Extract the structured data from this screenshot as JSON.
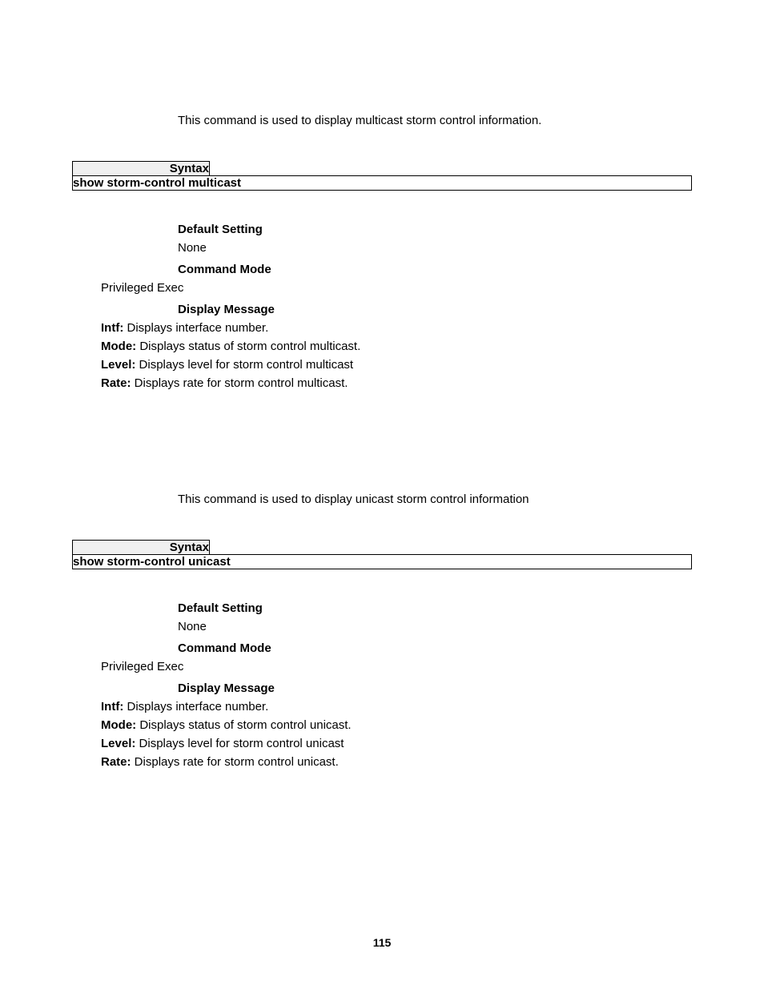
{
  "page_number": "115",
  "sections": [
    {
      "intro": "This command is used to display multicast storm control information.",
      "syntax_label": "Syntax",
      "syntax_command": "show storm-control multicast",
      "default_setting_label": "Default Setting",
      "default_setting_value": "None",
      "command_mode_label": "Command Mode",
      "command_mode_value": "Privileged Exec",
      "display_message_label": "Display Message",
      "messages": [
        {
          "key": "Intf:",
          "text": " Displays interface number."
        },
        {
          "key": "Mode:",
          "text": " Displays status of storm control multicast."
        },
        {
          "key": "Level:",
          "text": " Displays level for storm control multicast"
        },
        {
          "key": "Rate:",
          "text": " Displays rate for storm control multicast."
        }
      ]
    },
    {
      "intro": "This command is used to display unicast storm control information",
      "syntax_label": "Syntax",
      "syntax_command": "show storm-control unicast",
      "default_setting_label": "Default Setting",
      "default_setting_value": "None",
      "command_mode_label": "Command Mode",
      "command_mode_value": "Privileged Exec",
      "display_message_label": "Display Message",
      "messages": [
        {
          "key": "Intf:",
          "text": " Displays interface number."
        },
        {
          "key": "Mode:",
          "text": " Displays status of storm control unicast."
        },
        {
          "key": "Level:",
          "text": " Displays level for storm control unicast"
        },
        {
          "key": "Rate:",
          "text": " Displays rate for storm control unicast."
        }
      ]
    }
  ]
}
